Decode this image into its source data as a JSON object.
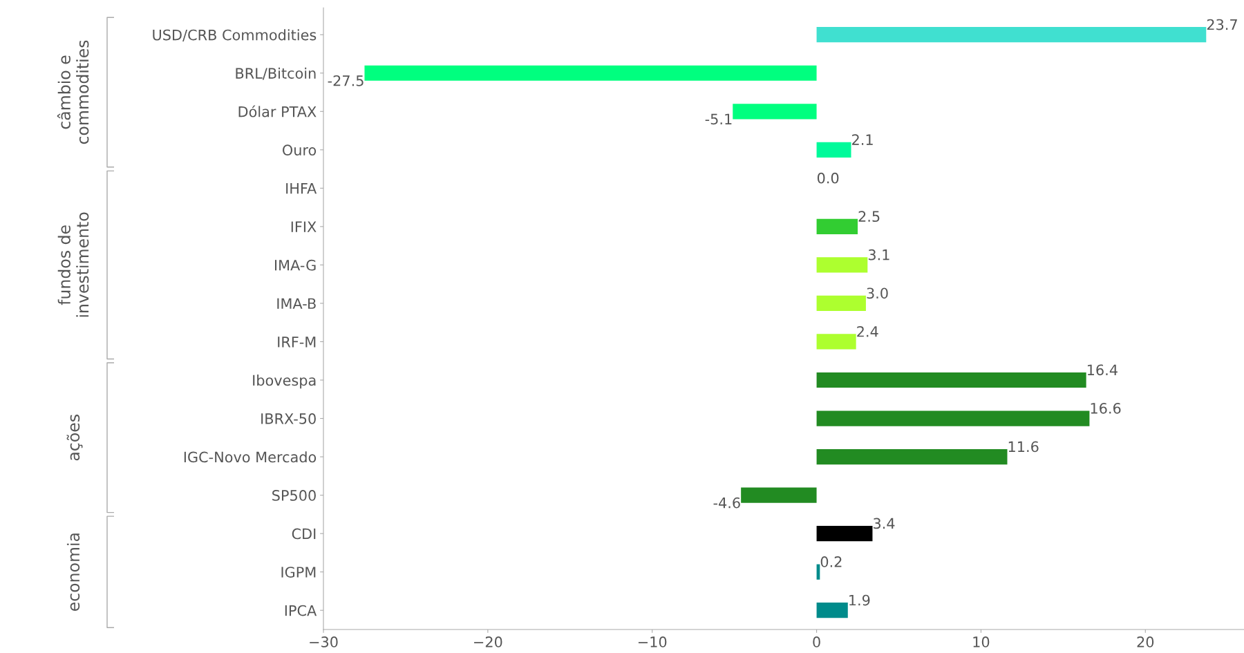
{
  "chart_data": {
    "type": "bar",
    "orientation": "horizontal",
    "categories": [
      "USD/CRB Commodities",
      "BRL/Bitcoin",
      "Dólar PTAX",
      "Ouro",
      "IHFA",
      "IFIX",
      "IMA-G",
      "IMA-B",
      "IRF-M",
      "Ibovespa",
      "IBRX-50",
      "IGC-Novo Mercado",
      "SP500",
      "CDI",
      "IGPM",
      "IPCA"
    ],
    "values": [
      23.7,
      -27.5,
      -5.1,
      2.1,
      0.0,
      2.5,
      3.1,
      3.0,
      2.4,
      16.4,
      16.6,
      11.6,
      -4.6,
      3.4,
      0.2,
      1.9
    ],
    "value_labels": [
      "23.7",
      "-27.5",
      "-5.1",
      "2.1",
      "0.0",
      "2.5",
      "3.1",
      "3.0",
      "2.4",
      "16.4",
      "16.6",
      "11.6",
      "-4.6",
      "3.4",
      "0.2",
      "1.9"
    ],
    "colors": [
      "#40e0d0",
      "#00ff7f",
      "#00ff7f",
      "#00fa9a",
      "#00fa9a",
      "#32cd32",
      "#adff2f",
      "#adff2f",
      "#adff2f",
      "#228b22",
      "#228b22",
      "#228b22",
      "#228b22",
      "#000000",
      "#008b8b",
      "#008b8b"
    ],
    "xlim": [
      -30,
      26
    ],
    "xticks": [
      -30,
      -20,
      -10,
      0,
      10,
      20
    ],
    "grid": false,
    "legend": false,
    "annotations": [
      "câmbio e\ncommodities",
      "fundos de\ninvestimento",
      "ações",
      "economia"
    ]
  }
}
